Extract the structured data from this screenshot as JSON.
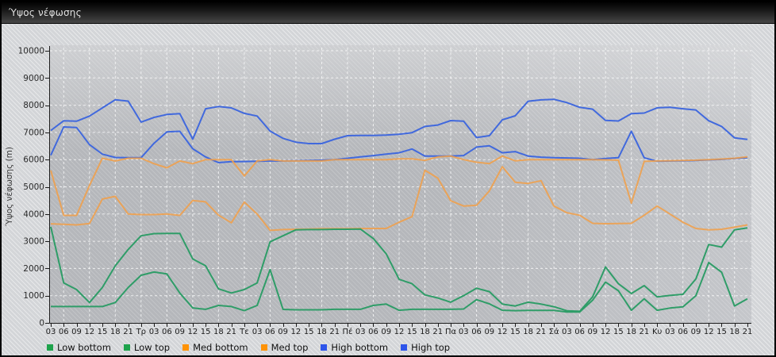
{
  "window": {
    "title": "Ύψος νέφωσης"
  },
  "chart_data": {
    "type": "line",
    "title": "Ύψος νέφωσης",
    "ylabel": "Ύψος νέφωσης (m)",
    "ylim": [
      0,
      10000
    ],
    "ytick_step": 1000,
    "y_tick_labels": [
      "0",
      "1000",
      "2000",
      "3000",
      "4000",
      "5000",
      "6000",
      "7000",
      "8000",
      "9000",
      "10000"
    ],
    "grid": "white dashed, horizontal every 1000 m, vertical every 6 h",
    "legend_position": "bottom",
    "x_labels": [
      "03",
      "06",
      "09",
      "12",
      "15",
      "18",
      "21",
      "Τρ",
      "03",
      "06",
      "09",
      "12",
      "15",
      "18",
      "21",
      "Τε",
      "03",
      "06",
      "09",
      "12",
      "15",
      "18",
      "21",
      "Πέ",
      "03",
      "06",
      "09",
      "12",
      "15",
      "18",
      "21",
      "Πα",
      "03",
      "06",
      "09",
      "12",
      "15",
      "18",
      "21",
      "Σά",
      "03",
      "06",
      "09",
      "12",
      "15",
      "18",
      "21",
      "Κυ",
      "03",
      "06",
      "09",
      "12",
      "15",
      "18",
      "21"
    ],
    "day_label_indices": [
      7,
      15,
      23,
      31,
      39,
      47
    ],
    "series": [
      {
        "name": "Low bottom",
        "color": "#2f9d68",
        "swatch": "#1ea34c",
        "values": [
          600,
          600,
          600,
          600,
          600,
          750,
          1300,
          1750,
          1870,
          1800,
          1100,
          550,
          500,
          640,
          600,
          450,
          640,
          1955,
          495,
          480,
          480,
          480,
          500,
          500,
          500,
          640,
          690,
          465,
          500,
          500,
          500,
          500,
          510,
          855,
          700,
          465,
          450,
          460,
          460,
          460,
          400,
          400,
          835,
          1500,
          1180,
          465,
          885,
          465,
          545,
          590,
          1000,
          2220,
          1860,
          620,
          885
        ]
      },
      {
        "name": "Low top",
        "color": "#2f9d68",
        "swatch": "#1ea34c",
        "values": [
          3530,
          1470,
          1225,
          750,
          1300,
          2100,
          2700,
          3200,
          3280,
          3290,
          3290,
          2350,
          2100,
          1250,
          1100,
          1225,
          1470,
          2980,
          3200,
          3420,
          3430,
          3430,
          3440,
          3440,
          3450,
          3100,
          2540,
          1600,
          1440,
          1030,
          915,
          760,
          1000,
          1275,
          1150,
          690,
          620,
          760,
          690,
          595,
          445,
          425,
          955,
          2055,
          1440,
          1080,
          1370,
          955,
          1010,
          1050,
          1615,
          2880,
          2785,
          3420,
          3490
        ]
      },
      {
        "name": "Med bottom",
        "color": "rgba(240,159,74,0.88)",
        "swatch": "#ff9306",
        "values": [
          3640,
          3620,
          3600,
          3650,
          4550,
          4650,
          4000,
          3980,
          3980,
          4000,
          3950,
          4500,
          4450,
          3960,
          3680,
          4440,
          4000,
          3400,
          3430,
          3440,
          3450,
          3460,
          3460,
          3460,
          3470,
          3470,
          3470,
          3700,
          3905,
          5610,
          5320,
          4490,
          4295,
          4320,
          4850,
          5740,
          5170,
          5125,
          5225,
          4295,
          4050,
          3955,
          3660,
          3645,
          3650,
          3660,
          3955,
          4295,
          4000,
          3700,
          3470,
          3420,
          3440,
          3515,
          3600
        ]
      },
      {
        "name": "Med top",
        "color": "rgba(240,159,74,0.88)",
        "swatch": "#ff9306",
        "values": [
          5600,
          3950,
          3950,
          5050,
          6050,
          5950,
          6050,
          6050,
          5850,
          5700,
          5950,
          5850,
          6000,
          6000,
          6000,
          5400,
          5950,
          6000,
          5950,
          5950,
          5950,
          5950,
          6000,
          6000,
          6000,
          6000,
          6000,
          6030,
          6030,
          5975,
          6100,
          6130,
          6000,
          5905,
          5855,
          6130,
          5955,
          6000,
          6000,
          6000,
          6000,
          6000,
          6000,
          5990,
          5980,
          4400,
          5935,
          5950,
          5960,
          5970,
          5980,
          6000,
          6020,
          6050,
          6100
        ]
      },
      {
        "name": "High bottom",
        "color": "#4169dd",
        "swatch": "#2e55ea",
        "values": [
          6160,
          7200,
          7180,
          6550,
          6200,
          6080,
          6070,
          6070,
          6600,
          7020,
          7040,
          6400,
          6100,
          5890,
          5925,
          5930,
          5940,
          5950,
          5950,
          5960,
          5970,
          5980,
          6000,
          6050,
          6100,
          6150,
          6200,
          6250,
          6390,
          6130,
          6130,
          6130,
          6150,
          6460,
          6510,
          6250,
          6295,
          6130,
          6090,
          6070,
          6060,
          6050,
          6000,
          6040,
          6070,
          7045,
          6070,
          5940,
          5950,
          5960,
          5970,
          5990,
          6010,
          6040,
          6070
        ]
      },
      {
        "name": "High top",
        "color": "#4169dd",
        "swatch": "#2e55ea",
        "values": [
          7070,
          7430,
          7410,
          7600,
          7900,
          8200,
          8150,
          7380,
          7550,
          7660,
          7690,
          6750,
          7870,
          7950,
          7900,
          7700,
          7600,
          7050,
          6780,
          6640,
          6590,
          6590,
          6750,
          6880,
          6890,
          6890,
          6900,
          6930,
          6990,
          7220,
          7270,
          7435,
          7415,
          6810,
          6880,
          7465,
          7610,
          8145,
          8195,
          8215,
          8095,
          7920,
          7855,
          7440,
          7420,
          7690,
          7710,
          7905,
          7920,
          7870,
          7825,
          7430,
          7220,
          6800,
          6740
        ]
      }
    ]
  }
}
